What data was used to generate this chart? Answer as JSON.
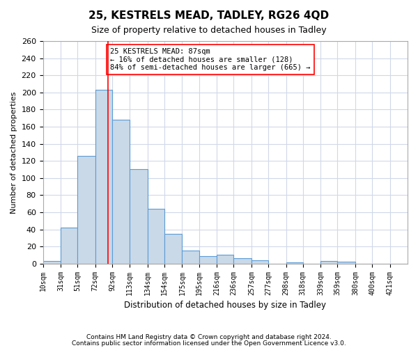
{
  "title": "25, KESTRELS MEAD, TADLEY, RG26 4QD",
  "subtitle": "Size of property relative to detached houses in Tadley",
  "xlabel": "Distribution of detached houses by size in Tadley",
  "ylabel": "Number of detached properties",
  "categories": [
    "10sqm",
    "31sqm",
    "51sqm",
    "72sqm",
    "92sqm",
    "113sqm",
    "134sqm",
    "154sqm",
    "175sqm",
    "195sqm",
    "216sqm",
    "236sqm",
    "257sqm",
    "277sqm",
    "298sqm",
    "318sqm",
    "339sqm",
    "359sqm",
    "380sqm",
    "400sqm",
    "421sqm"
  ],
  "values": [
    3,
    42,
    126,
    203,
    168,
    110,
    64,
    35,
    15,
    9,
    10,
    6,
    4,
    0,
    1,
    0,
    3,
    2,
    0,
    0,
    0
  ],
  "bar_color": "#c9d9e8",
  "bar_edge_color": "#5b9bd5",
  "grid_color": "#d0d8e8",
  "background_color": "#ffffff",
  "x_bin_edges": [
    10,
    31,
    51,
    72,
    92,
    113,
    134,
    154,
    175,
    195,
    216,
    236,
    257,
    277,
    298,
    318,
    339,
    359,
    380,
    400,
    421,
    442
  ],
  "red_line_x": 87,
  "annotation_text_line1": "25 KESTRELS MEAD: 87sqm",
  "annotation_text_line2": "← 16% of detached houses are smaller (128)",
  "annotation_text_line3": "84% of semi-detached houses are larger (665) →",
  "ylim": [
    0,
    260
  ],
  "yticks": [
    0,
    20,
    40,
    60,
    80,
    100,
    120,
    140,
    160,
    180,
    200,
    220,
    240,
    260
  ],
  "footer_line1": "Contains HM Land Registry data © Crown copyright and database right 2024.",
  "footer_line2": "Contains public sector information licensed under the Open Government Licence v3.0."
}
